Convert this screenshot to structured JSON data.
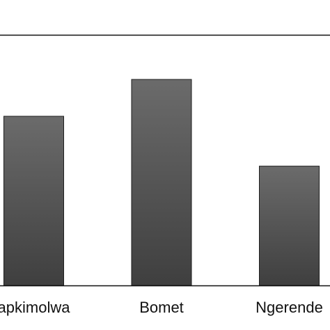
{
  "chart_data": {
    "type": "bar",
    "categories": [
      "apkimolwa",
      "Bomet",
      "Ngerende"
    ],
    "values": [
      67.5,
      82.2,
      47.6
    ],
    "ylim": [
      0,
      100
    ],
    "title": "",
    "xlabel": "",
    "ylabel": "",
    "grid": false,
    "legend": "none",
    "colors": {
      "bar_fill_top": "#6b6b6b",
      "bar_fill_bottom": "#3f3f3f",
      "bar_stroke": "#1e1e1e",
      "axis": "#111111"
    }
  }
}
